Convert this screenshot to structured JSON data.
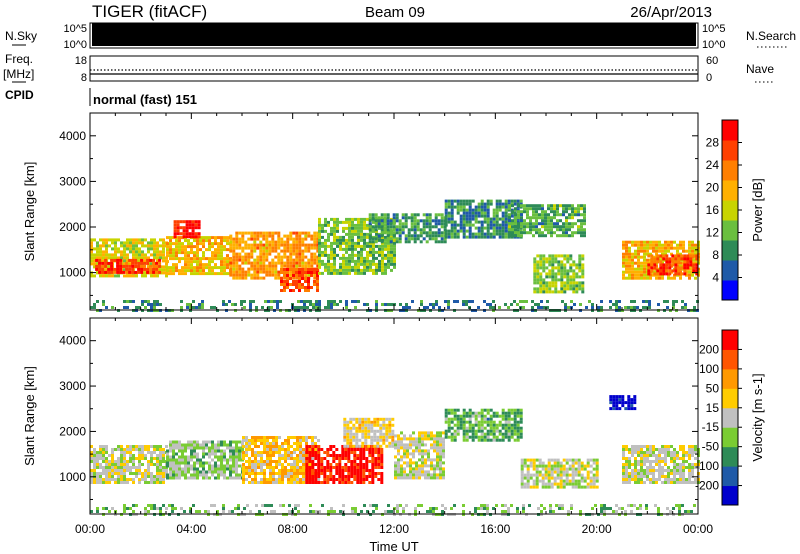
{
  "header": {
    "title": "TIGER (fitACF)",
    "beam": "Beam 09",
    "date": "26/Apr/2013"
  },
  "top_panels": {
    "nsky": {
      "label": "N.Sky",
      "left_ticks": [
        "10^5",
        "10^0"
      ],
      "right_ticks": [
        "10^5",
        "10^0"
      ],
      "right_label": "N.Search"
    },
    "freq": {
      "label_line1": "Freq.",
      "label_line2": "[MHz]",
      "left_ticks": [
        "18",
        "8"
      ],
      "right_ticks": [
        "60",
        "0"
      ],
      "right_label": "Nave"
    },
    "cpid": {
      "label": "CPID",
      "value": "normal (fast) 151"
    }
  },
  "colors": {
    "power_scale": [
      "#0000ff",
      "#1f5aa8",
      "#2e8b57",
      "#6abf3f",
      "#c8d400",
      "#ffb000",
      "#ff7f00",
      "#ff4000",
      "#ff0000"
    ],
    "velocity_scale": [
      "#0000cc",
      "#1f5aa8",
      "#2e8b57",
      "#7acc33",
      "#c0c0c0",
      "#ffcc00",
      "#ff9900",
      "#ff5500",
      "#ff0000"
    ]
  },
  "chart_data": [
    {
      "type": "heatmap",
      "name": "power",
      "ylabel": "Slant Range [km]",
      "y_ticks": [
        1000,
        2000,
        3000,
        4000
      ],
      "ylim": [
        180,
        4500
      ],
      "x_ticks": [
        "00:00",
        "04:00",
        "08:00",
        "12:00",
        "16:00",
        "20:00",
        "00:00"
      ],
      "xlim_hours": [
        0,
        24
      ],
      "colorbar": {
        "label": "Power [dB]",
        "ticks": [
          "28",
          "24",
          "20",
          "16",
          "12",
          "8",
          "4"
        ],
        "range": [
          0,
          30
        ]
      },
      "echo_regions": [
        {
          "t": [
            0.0,
            3.0
          ],
          "range": [
            900,
            1750
          ],
          "value": 16
        },
        {
          "t": [
            0.2,
            2.8
          ],
          "range": [
            1000,
            1300
          ],
          "value": 26
        },
        {
          "t": [
            3.0,
            5.5
          ],
          "range": [
            1000,
            1800
          ],
          "value": 18
        },
        {
          "t": [
            3.3,
            4.3
          ],
          "range": [
            1800,
            2150
          ],
          "value": 27
        },
        {
          "t": [
            5.5,
            9.0
          ],
          "range": [
            900,
            1900
          ],
          "value": 20
        },
        {
          "t": [
            7.5,
            9.0
          ],
          "range": [
            600,
            1100
          ],
          "value": 24
        },
        {
          "t": [
            9.0,
            12.0
          ],
          "range": [
            1000,
            2200
          ],
          "value": 12
        },
        {
          "t": [
            11.0,
            14.0
          ],
          "range": [
            1700,
            2300
          ],
          "value": 9
        },
        {
          "t": [
            14.0,
            17.0
          ],
          "range": [
            1800,
            2600
          ],
          "value": 8
        },
        {
          "t": [
            16.5,
            19.5
          ],
          "range": [
            1800,
            2500
          ],
          "value": 10
        },
        {
          "t": [
            17.5,
            19.5
          ],
          "range": [
            600,
            1400
          ],
          "value": 13
        },
        {
          "t": [
            21.0,
            24.0
          ],
          "range": [
            900,
            1700
          ],
          "value": 18
        },
        {
          "t": [
            22.0,
            24.0
          ],
          "range": [
            1000,
            1400
          ],
          "value": 25
        },
        {
          "t": [
            0.0,
            24.0
          ],
          "range": [
            200,
            400
          ],
          "value": 8
        }
      ]
    },
    {
      "type": "heatmap",
      "name": "velocity",
      "ylabel": "Slant Range [km]",
      "y_ticks": [
        1000,
        2000,
        3000,
        4000
      ],
      "ylim": [
        180,
        4500
      ],
      "x_ticks": [
        "00:00",
        "04:00",
        "08:00",
        "12:00",
        "16:00",
        "20:00",
        "00:00"
      ],
      "xlabel": "Time UT",
      "xlim_hours": [
        0,
        24
      ],
      "colorbar": {
        "label": "Velocity [m s-1]",
        "ticks": [
          "200",
          "100",
          "50",
          "15",
          "-15",
          "-50",
          "-100",
          "-200"
        ],
        "range": [
          -250,
          250
        ]
      },
      "echo_regions": [
        {
          "t": [
            0.0,
            3.0
          ],
          "range": [
            900,
            1700
          ],
          "value": 0
        },
        {
          "t": [
            3.0,
            6.0
          ],
          "range": [
            1000,
            1800
          ],
          "value": -40
        },
        {
          "t": [
            6.0,
            9.0
          ],
          "range": [
            900,
            1900
          ],
          "value": 60
        },
        {
          "t": [
            8.5,
            11.5
          ],
          "range": [
            900,
            1700
          ],
          "value": 220
        },
        {
          "t": [
            10.0,
            12.0
          ],
          "range": [
            1700,
            2300
          ],
          "value": 40
        },
        {
          "t": [
            12.0,
            14.0
          ],
          "range": [
            1000,
            2000
          ],
          "value": 0
        },
        {
          "t": [
            14.0,
            17.0
          ],
          "range": [
            1800,
            2500
          ],
          "value": -80
        },
        {
          "t": [
            17.0,
            20.0
          ],
          "range": [
            800,
            1400
          ],
          "value": 0
        },
        {
          "t": [
            20.5,
            21.5
          ],
          "range": [
            2500,
            2800
          ],
          "value": -220
        },
        {
          "t": [
            21.0,
            24.0
          ],
          "range": [
            900,
            1700
          ],
          "value": 0
        },
        {
          "t": [
            0.0,
            24.0
          ],
          "range": [
            200,
            400
          ],
          "value": -60
        }
      ]
    }
  ]
}
